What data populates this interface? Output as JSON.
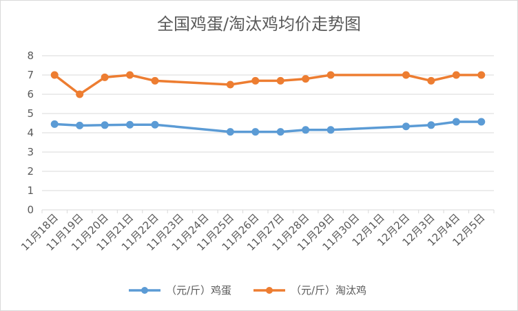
{
  "chart_data": {
    "type": "line",
    "title": "全国鸡蛋/淘汰鸡均价走势图",
    "categories": [
      "11月18日",
      "11月19日",
      "11月20日",
      "11月21日",
      "11月22日",
      "11月23日",
      "11月24日",
      "11月25日",
      "11月26日",
      "11月27日",
      "11月28日",
      "11月29日",
      "11月30日",
      "12月1日",
      "12月2日",
      "12月3日",
      "12月4日",
      "12月5日"
    ],
    "ylim": [
      0,
      8
    ],
    "yticks": [
      "0",
      "1",
      "2",
      "3",
      "4",
      "5",
      "6",
      "7",
      "8"
    ],
    "grid": true,
    "legend": "bottom",
    "series": [
      {
        "name": "（元/斤）鸡蛋",
        "color": "#5b9bd5",
        "values": [
          4.45,
          4.38,
          4.4,
          4.42,
          4.42,
          null,
          null,
          4.05,
          4.05,
          4.05,
          4.15,
          4.15,
          null,
          null,
          4.33,
          4.4,
          4.57,
          4.57
        ]
      },
      {
        "name": "（元/斤）淘汰鸡",
        "color": "#ed7d31",
        "values": [
          7.0,
          6.0,
          6.88,
          7.0,
          6.7,
          null,
          null,
          6.5,
          6.7,
          6.7,
          6.8,
          7.0,
          null,
          null,
          7.0,
          6.7,
          7.0,
          7.0
        ]
      }
    ]
  }
}
